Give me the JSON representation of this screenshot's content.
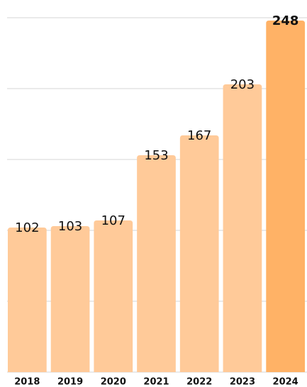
{
  "chart_data": {
    "type": "bar",
    "categories": [
      "2018",
      "2019",
      "2020",
      "2021",
      "2022",
      "2023",
      "2024"
    ],
    "values": [
      102,
      103,
      107,
      153,
      167,
      203,
      248
    ],
    "colors": [
      "#ffca99",
      "#ffca99",
      "#ffca99",
      "#ffca99",
      "#ffca99",
      "#ffca99",
      "#ffb266"
    ],
    "ylim": [
      0,
      250
    ],
    "yticks": [
      0,
      50,
      100,
      150,
      200,
      250
    ],
    "grid": true
  }
}
